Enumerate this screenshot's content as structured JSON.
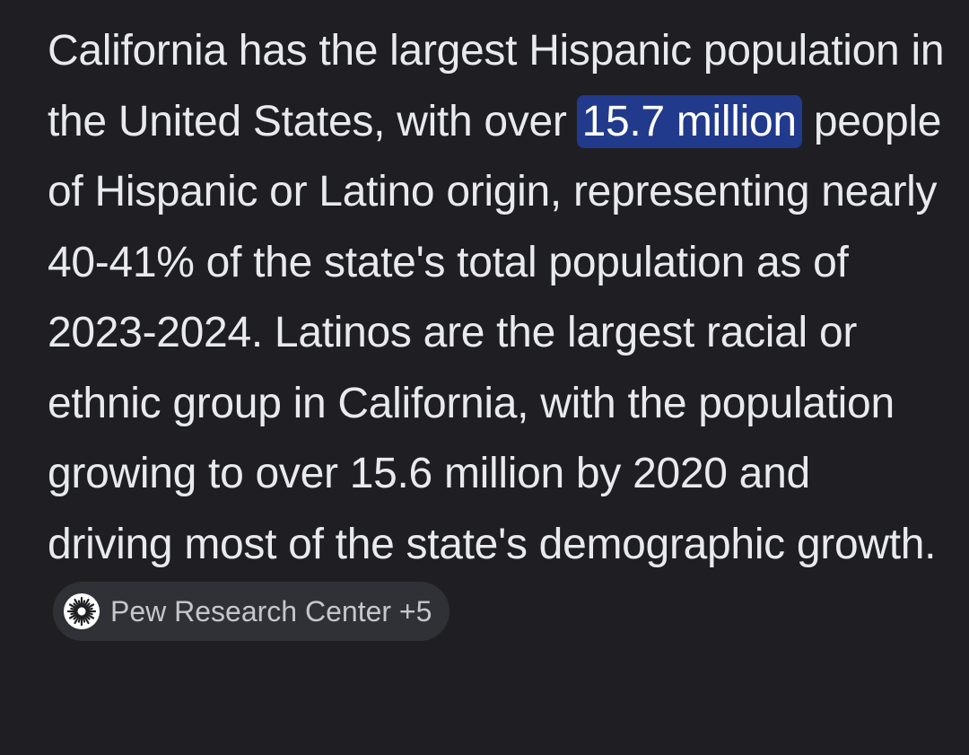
{
  "answer": {
    "text_before": "California has the largest Hispanic population in the United States, with over ",
    "highlight": "15.7 million",
    "text_after": " people of Hispanic or Latino origin, representing nearly 40-41% of the state's total population as of 2023-2024. Latinos are the largest racial or ethnic group in California, with the population growing to over 15.6 million by 2020 and driving most of the state's demographic growth.",
    "highlight_color": "#213a8c"
  },
  "source_chip": {
    "label": "Pew Research Center",
    "more_count": "+5",
    "icon": "pew-logo-icon"
  },
  "colors": {
    "background": "#1f1f23",
    "text": "#e8eaed",
    "chip_background": "#303136",
    "chip_text": "#c4c7cc"
  }
}
